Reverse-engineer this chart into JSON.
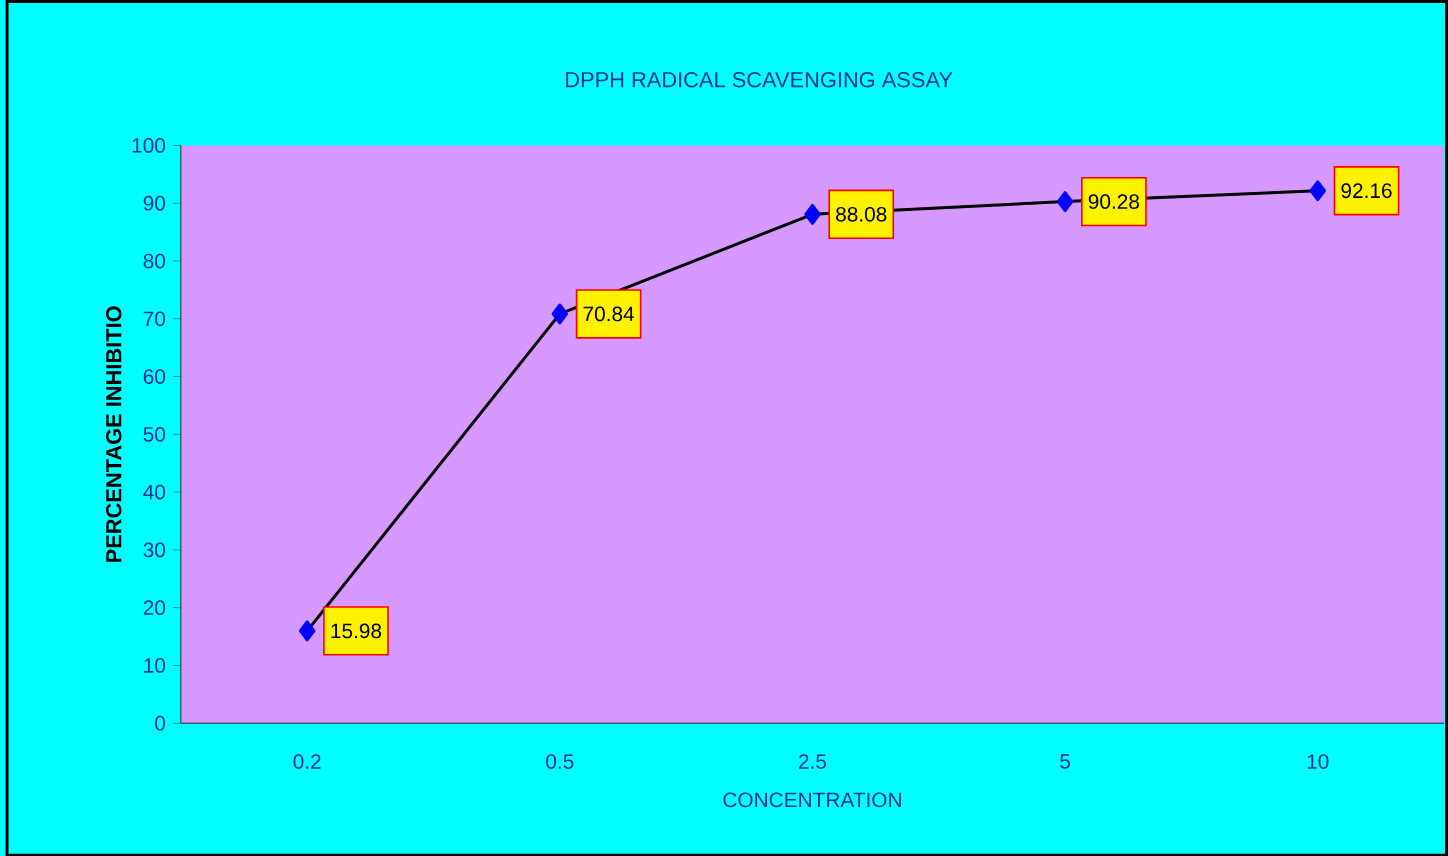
{
  "chart_data": {
    "type": "line",
    "title": "DPPH RADICAL SCAVENGING ASSAY",
    "xlabel": "CONCENTRATION",
    "ylabel": "PERCENTAGE INHIBITIO",
    "categories": [
      "0.2",
      "0.5",
      "2.5",
      "5",
      "10"
    ],
    "series": [
      {
        "color": "#0000ff",
        "values": [
          15.98,
          70.84,
          88.08,
          90.28,
          92.16
        ]
      }
    ],
    "ylim": [
      0,
      100
    ],
    "yticks": [
      0,
      10,
      20,
      30,
      40,
      50,
      60,
      70,
      80,
      90,
      100
    ],
    "data_labels": true,
    "marker": "diamond",
    "line_style": "solid",
    "grid": false
  }
}
